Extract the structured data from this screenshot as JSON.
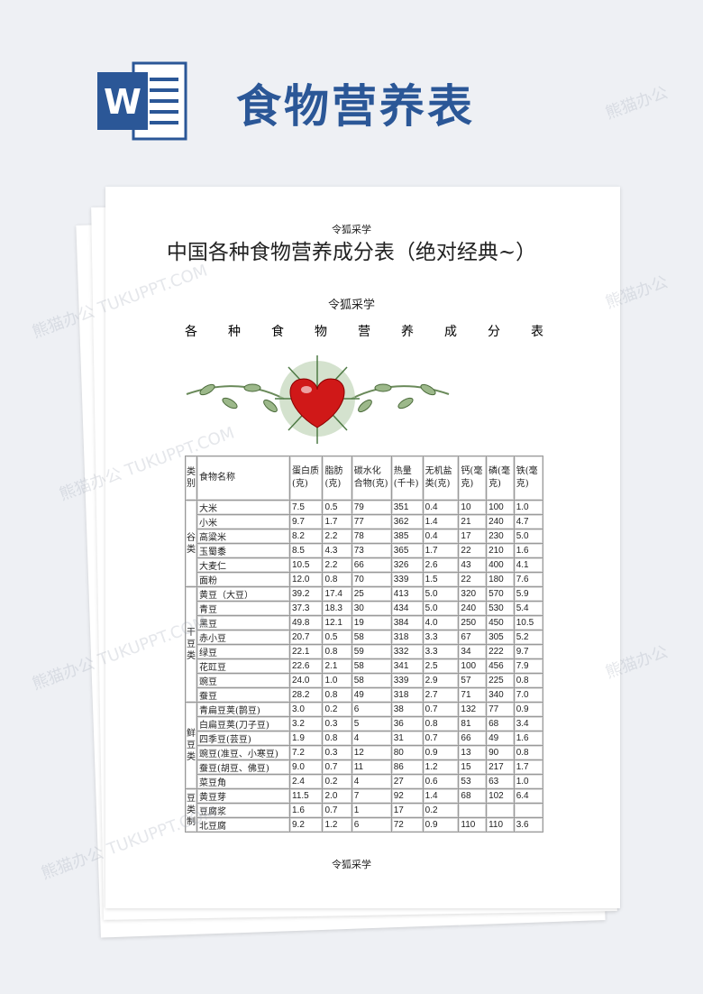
{
  "header": {
    "title": "食物营养表",
    "icon": "word-icon",
    "brand_color": "#2b5797"
  },
  "doc": {
    "author_top": "令狐采学",
    "title": "中国各种食物营养成分表（绝对经典~）",
    "author_mid": "令狐采学",
    "subtitle_chars": [
      "各",
      "种",
      "食",
      "物",
      "营",
      "养",
      "成",
      "分",
      "表"
    ],
    "decoration": "heart-vine-icon",
    "author_bottom": "令狐采学"
  },
  "table": {
    "headers": [
      "类别",
      "食物名称",
      "蛋白质(克)",
      "脂肪(克)",
      "碳水化合物(克)",
      "热量(千卡)",
      "无机盐类(克)",
      "钙(毫克)",
      "磷(毫克)",
      "铁(毫克)"
    ],
    "groups": [
      {
        "category": "谷类",
        "rows": [
          [
            "大米",
            "7.5",
            "0.5",
            "79",
            "351",
            "0.4",
            "10",
            "100",
            "1.0"
          ],
          [
            "小米",
            "9.7",
            "1.7",
            "77",
            "362",
            "1.4",
            "21",
            "240",
            "4.7"
          ],
          [
            "高粱米",
            "8.2",
            "2.2",
            "78",
            "385",
            "0.4",
            "17",
            "230",
            "5.0"
          ],
          [
            "玉蜀黍",
            "8.5",
            "4.3",
            "73",
            "365",
            "1.7",
            "22",
            "210",
            "1.6"
          ],
          [
            "大麦仁",
            "10.5",
            "2.2",
            "66",
            "326",
            "2.6",
            "43",
            "400",
            "4.1"
          ],
          [
            "面粉",
            "12.0",
            "0.8",
            "70",
            "339",
            "1.5",
            "22",
            "180",
            "7.6"
          ]
        ]
      },
      {
        "category": "干豆类",
        "rows": [
          [
            "黄豆（大豆）",
            "39.2",
            "17.4",
            "25",
            "413",
            "5.0",
            "320",
            "570",
            "5.9"
          ],
          [
            "青豆",
            "37.3",
            "18.3",
            "30",
            "434",
            "5.0",
            "240",
            "530",
            "5.4"
          ],
          [
            "黑豆",
            "49.8",
            "12.1",
            "19",
            "384",
            "4.0",
            "250",
            "450",
            "10.5"
          ],
          [
            "赤小豆",
            "20.7",
            "0.5",
            "58",
            "318",
            "3.3",
            "67",
            "305",
            "5.2"
          ],
          [
            "绿豆",
            "22.1",
            "0.8",
            "59",
            "332",
            "3.3",
            "34",
            "222",
            "9.7"
          ],
          [
            "花豇豆",
            "22.6",
            "2.1",
            "58",
            "341",
            "2.5",
            "100",
            "456",
            "7.9"
          ],
          [
            "豌豆",
            "24.0",
            "1.0",
            "58",
            "339",
            "2.9",
            "57",
            "225",
            "0.8"
          ],
          [
            "蚕豆",
            "28.2",
            "0.8",
            "49",
            "318",
            "2.7",
            "71",
            "340",
            "7.0"
          ]
        ]
      },
      {
        "category": "鲜豆类",
        "rows": [
          [
            "青扁豆荚(鹊豆)",
            "3.0",
            "0.2",
            "6",
            "38",
            "0.7",
            "132",
            "77",
            "0.9"
          ],
          [
            "白扁豆荚(刀子豆)",
            "3.2",
            "0.3",
            "5",
            "36",
            "0.8",
            "81",
            "68",
            "3.4"
          ],
          [
            "四季豆(芸豆)",
            "1.9",
            "0.8",
            "4",
            "31",
            "0.7",
            "66",
            "49",
            "1.6"
          ],
          [
            "豌豆(准豆、小寒豆)",
            "7.2",
            "0.3",
            "12",
            "80",
            "0.9",
            "13",
            "90",
            "0.8"
          ],
          [
            "蚕豆(胡豆、佛豆)",
            "9.0",
            "0.7",
            "11",
            "86",
            "1.2",
            "15",
            "217",
            "1.7"
          ],
          [
            "菜豆角",
            "2.4",
            "0.2",
            "4",
            "27",
            "0.6",
            "53",
            "63",
            "1.0"
          ]
        ]
      },
      {
        "category": "豆类制",
        "rows": [
          [
            "黄豆芽",
            "11.5",
            "2.0",
            "7",
            "92",
            "1.4",
            "68",
            "102",
            "6.4"
          ],
          [
            "豆腐浆",
            "1.6",
            "0.7",
            "1",
            "17",
            "0.2",
            "",
            "",
            ""
          ],
          [
            "北豆腐",
            "9.2",
            "1.2",
            "6",
            "72",
            "0.9",
            "110",
            "110",
            "3.6"
          ]
        ]
      }
    ]
  }
}
